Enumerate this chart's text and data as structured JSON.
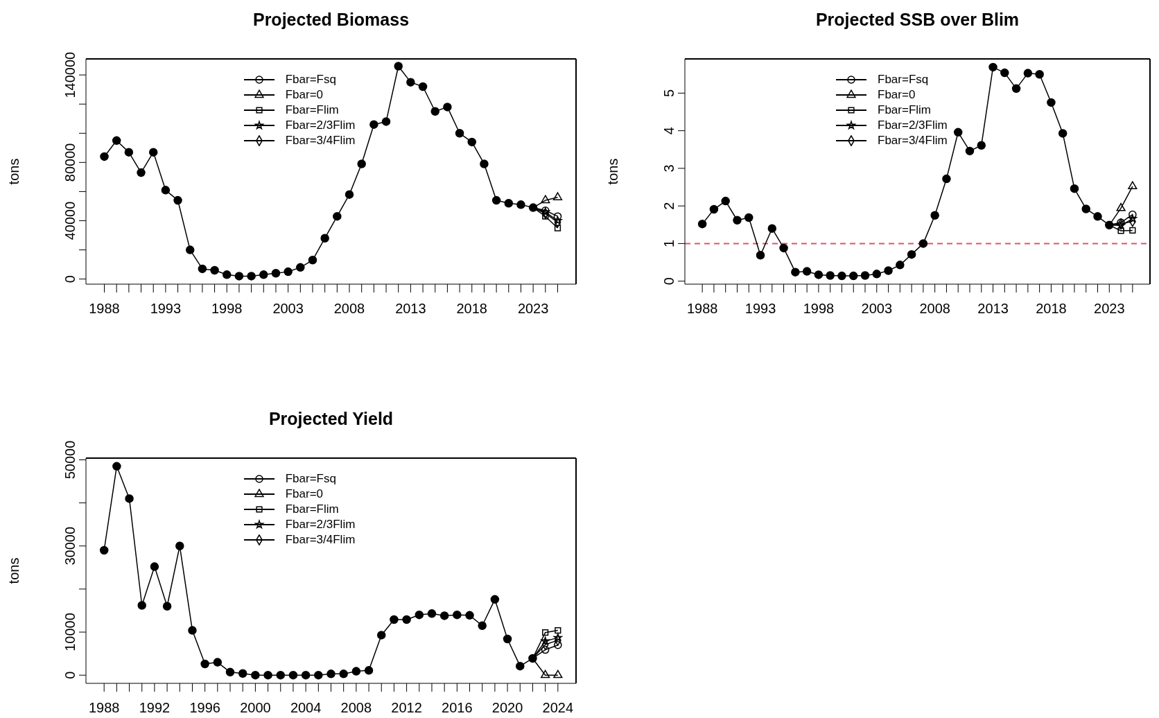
{
  "chart_data": [
    {
      "type": "line",
      "title": "Projected Biomass",
      "ylabel": "tons",
      "legend": "top",
      "xlim": [
        1986.5,
        2026.5
      ],
      "ylim": [
        -3500,
        151000
      ],
      "xticks": [
        1988,
        {
          "value": 1989,
          "label": null
        },
        {
          "value": 1990,
          "label": null
        },
        {
          "value": 1991,
          "label": null
        },
        {
          "value": 1992,
          "label": null
        },
        1993,
        {
          "value": 1994,
          "label": null
        },
        {
          "value": 1995,
          "label": null
        },
        {
          "value": 1996,
          "label": null
        },
        {
          "value": 1997,
          "label": null
        },
        1998,
        {
          "value": 1999,
          "label": null
        },
        {
          "value": 2000,
          "label": null
        },
        {
          "value": 2001,
          "label": null
        },
        {
          "value": 2002,
          "label": null
        },
        2003,
        {
          "value": 2004,
          "label": null
        },
        {
          "value": 2005,
          "label": null
        },
        {
          "value": 2006,
          "label": null
        },
        {
          "value": 2007,
          "label": null
        },
        2008,
        {
          "value": 2009,
          "label": null
        },
        {
          "value": 2010,
          "label": null
        },
        {
          "value": 2011,
          "label": null
        },
        {
          "value": 2012,
          "label": null
        },
        2013,
        {
          "value": 2014,
          "label": null
        },
        {
          "value": 2015,
          "label": null
        },
        {
          "value": 2016,
          "label": null
        },
        {
          "value": 2017,
          "label": null
        },
        2018,
        {
          "value": 2019,
          "label": null
        },
        {
          "value": 2020,
          "label": null
        },
        {
          "value": 2021,
          "label": null
        },
        {
          "value": 2022,
          "label": null
        },
        2023,
        {
          "value": 2024,
          "label": null
        },
        {
          "value": 2025,
          "label": null
        }
      ],
      "yticks": [
        0,
        {
          "value": 20000,
          "label": null
        },
        40000,
        {
          "value": 60000,
          "label": null
        },
        80000,
        {
          "value": 100000,
          "label": null
        },
        {
          "value": 120000,
          "label": null
        },
        140000
      ],
      "series": [
        {
          "color": "#000000",
          "marker": "circle",
          "x": [
            1988,
            1989,
            1990,
            1991,
            1992,
            1993,
            1994,
            1995,
            1996,
            1997,
            1998,
            1999,
            2000,
            2001,
            2002,
            2003,
            2004,
            2005,
            2006,
            2007,
            2008,
            2009,
            2010,
            2011,
            2012,
            2013,
            2014,
            2015,
            2016,
            2017,
            2018,
            2019,
            2020,
            2021,
            2022,
            2023
          ],
          "values": [
            84000,
            95000,
            87000,
            73000,
            87000,
            61000,
            54000,
            20000,
            7000,
            6000,
            3000,
            2000,
            2000,
            3000,
            4000,
            5000,
            8000,
            13000,
            28000,
            43000,
            58000,
            79000,
            106000,
            108000,
            146000,
            135000,
            132000,
            115000,
            118000,
            100000,
            94000,
            79000,
            54000,
            52000,
            51000,
            49000
          ]
        },
        {
          "name": "Fbar=Fsq",
          "color": "#000000",
          "marker": "circle",
          "x": [
            2023,
            2024,
            2025
          ],
          "values": [
            49000,
            47000,
            43000
          ]
        },
        {
          "name": "Fbar=0",
          "color": "#000000",
          "marker": "triangle",
          "x": [
            2023,
            2024,
            2025
          ],
          "values": [
            49000,
            54000,
            56000
          ]
        },
        {
          "name": "Fbar=Flim",
          "color": "#000000",
          "marker": "square",
          "x": [
            2023,
            2024,
            2025
          ],
          "values": [
            49000,
            43000,
            35000
          ]
        },
        {
          "name": "Fbar=2/3Flim",
          "color": "#000000",
          "marker": "star",
          "x": [
            2023,
            2024,
            2025
          ],
          "values": [
            49000,
            46000,
            40000
          ]
        },
        {
          "name": "Fbar=3/4Flim",
          "color": "#000000",
          "marker": "diamond",
          "x": [
            2023,
            2024,
            2025
          ],
          "values": [
            49000,
            45000,
            39000
          ]
        }
      ]
    },
    {
      "type": "line",
      "title": "Projected SSB over Blim",
      "ylabel": "tons",
      "legend": "top",
      "xlim": [
        1986.5,
        2026.5
      ],
      "ylim": [
        -0.08,
        5.91
      ],
      "xticks": [
        1988,
        {
          "value": 1989,
          "label": null
        },
        {
          "value": 1990,
          "label": null
        },
        {
          "value": 1991,
          "label": null
        },
        {
          "value": 1992,
          "label": null
        },
        1993,
        {
          "value": 1994,
          "label": null
        },
        {
          "value": 1995,
          "label": null
        },
        {
          "value": 1996,
          "label": null
        },
        {
          "value": 1997,
          "label": null
        },
        1998,
        {
          "value": 1999,
          "label": null
        },
        {
          "value": 2000,
          "label": null
        },
        {
          "value": 2001,
          "label": null
        },
        {
          "value": 2002,
          "label": null
        },
        2003,
        {
          "value": 2004,
          "label": null
        },
        {
          "value": 2005,
          "label": null
        },
        {
          "value": 2006,
          "label": null
        },
        {
          "value": 2007,
          "label": null
        },
        2008,
        {
          "value": 2009,
          "label": null
        },
        {
          "value": 2010,
          "label": null
        },
        {
          "value": 2011,
          "label": null
        },
        {
          "value": 2012,
          "label": null
        },
        2013,
        {
          "value": 2014,
          "label": null
        },
        {
          "value": 2015,
          "label": null
        },
        {
          "value": 2016,
          "label": null
        },
        {
          "value": 2017,
          "label": null
        },
        2018,
        {
          "value": 2019,
          "label": null
        },
        {
          "value": 2020,
          "label": null
        },
        {
          "value": 2021,
          "label": null
        },
        {
          "value": 2022,
          "label": null
        },
        2023,
        {
          "value": 2024,
          "label": null
        },
        {
          "value": 2025,
          "label": null
        }
      ],
      "yticks": [
        0,
        1,
        2,
        3,
        4,
        5
      ],
      "ref_lines": [
        {
          "axis": "y",
          "value": 1,
          "color": "#df536b",
          "line_style": "dashed"
        }
      ],
      "series": [
        {
          "color": "#000000",
          "marker": "circle",
          "x": [
            1988,
            1989,
            1990,
            1991,
            1992,
            1993,
            1994,
            1995,
            1996,
            1997,
            1998,
            1999,
            2000,
            2001,
            2002,
            2003,
            2004,
            2005,
            2006,
            2007,
            2008,
            2009,
            2010,
            2011,
            2012,
            2013,
            2014,
            2015,
            2016,
            2017,
            2018,
            2019,
            2020,
            2021,
            2022,
            2023
          ],
          "values": [
            1.52,
            1.91,
            2.13,
            1.62,
            1.69,
            0.69,
            1.4,
            0.88,
            0.24,
            0.26,
            0.17,
            0.15,
            0.14,
            0.14,
            0.15,
            0.19,
            0.28,
            0.43,
            0.71,
            1.0,
            1.75,
            2.72,
            3.96,
            3.46,
            3.61,
            5.69,
            5.54,
            5.12,
            5.53,
            5.5,
            4.75,
            3.93,
            2.46,
            1.92,
            1.72,
            1.49
          ]
        },
        {
          "name": "Fbar=Fsq",
          "color": "#000000",
          "marker": "circle",
          "x": [
            2023,
            2024,
            2025
          ],
          "values": [
            1.49,
            1.56,
            1.77
          ]
        },
        {
          "name": "Fbar=0",
          "color": "#000000",
          "marker": "triangle",
          "x": [
            2023,
            2024,
            2025
          ],
          "values": [
            1.49,
            1.94,
            2.52
          ]
        },
        {
          "name": "Fbar=Flim",
          "color": "#000000",
          "marker": "square",
          "x": [
            2023,
            2024,
            2025
          ],
          "values": [
            1.49,
            1.34,
            1.35
          ]
        },
        {
          "name": "Fbar=2/3Flim",
          "color": "#000000",
          "marker": "star",
          "x": [
            2023,
            2024,
            2025
          ],
          "values": [
            1.49,
            1.48,
            1.66
          ]
        },
        {
          "name": "Fbar=3/4Flim",
          "color": "#000000",
          "marker": "diamond",
          "x": [
            2023,
            2024,
            2025
          ],
          "values": [
            1.49,
            1.52,
            1.59
          ]
        }
      ]
    },
    {
      "type": "line",
      "title": "Projected Yield",
      "ylabel": "tons",
      "legend": "top",
      "xlim": [
        1986.56,
        2025.44
      ],
      "ylim": [
        -1900,
        50400
      ],
      "xticks": [
        1988,
        {
          "value": 1989,
          "label": null
        },
        {
          "value": 1990,
          "label": null
        },
        {
          "value": 1991,
          "label": null
        },
        1992,
        {
          "value": 1993,
          "label": null
        },
        {
          "value": 1994,
          "label": null
        },
        {
          "value": 1995,
          "label": null
        },
        1996,
        {
          "value": 1997,
          "label": null
        },
        {
          "value": 1998,
          "label": null
        },
        {
          "value": 1999,
          "label": null
        },
        2000,
        {
          "value": 2001,
          "label": null
        },
        {
          "value": 2002,
          "label": null
        },
        {
          "value": 2003,
          "label": null
        },
        2004,
        {
          "value": 2005,
          "label": null
        },
        {
          "value": 2006,
          "label": null
        },
        {
          "value": 2007,
          "label": null
        },
        2008,
        {
          "value": 2009,
          "label": null
        },
        {
          "value": 2010,
          "label": null
        },
        {
          "value": 2011,
          "label": null
        },
        2012,
        {
          "value": 2013,
          "label": null
        },
        {
          "value": 2014,
          "label": null
        },
        {
          "value": 2015,
          "label": null
        },
        2016,
        {
          "value": 2017,
          "label": null
        },
        {
          "value": 2018,
          "label": null
        },
        {
          "value": 2019,
          "label": null
        },
        2020,
        {
          "value": 2021,
          "label": null
        },
        {
          "value": 2022,
          "label": null
        },
        {
          "value": 2023,
          "label": null
        },
        2024
      ],
      "yticks": [
        0,
        10000,
        {
          "value": 20000,
          "label": null
        },
        30000,
        {
          "value": 40000,
          "label": null
        },
        50000
      ],
      "series": [
        {
          "color": "#000000",
          "marker": "circle",
          "x": [
            1988,
            1989,
            1990,
            1991,
            1992,
            1993,
            1994,
            1995,
            1996,
            1997,
            1998,
            1999,
            2000,
            2001,
            2002,
            2003,
            2004,
            2005,
            2006,
            2007,
            2008,
            2009,
            2010,
            2011,
            2012,
            2013,
            2014,
            2015,
            2016,
            2017,
            2018,
            2019,
            2020,
            2021,
            2022
          ],
          "values": [
            29000,
            48500,
            41000,
            16200,
            25200,
            16000,
            30000,
            10400,
            2600,
            3000,
            700,
            400,
            0,
            0,
            0,
            0,
            0,
            0,
            300,
            300,
            900,
            1100,
            9300,
            12900,
            12900,
            14000,
            14300,
            13800,
            14000,
            13900,
            11500,
            17600,
            8400,
            2100,
            3900
          ]
        },
        {
          "name": "Fbar=Fsq",
          "color": "#000000",
          "marker": "circle",
          "x": [
            2022,
            2023,
            2024
          ],
          "values": [
            3900,
            5900,
            7000
          ]
        },
        {
          "name": "Fbar=0",
          "color": "#000000",
          "marker": "triangle",
          "x": [
            2022,
            2023,
            2024
          ],
          "values": [
            3900,
            0,
            0
          ]
        },
        {
          "name": "Fbar=Flim",
          "color": "#000000",
          "marker": "square",
          "x": [
            2022,
            2023,
            2024
          ],
          "values": [
            3900,
            9900,
            10400
          ]
        },
        {
          "name": "Fbar=2/3Flim",
          "color": "#000000",
          "marker": "star",
          "x": [
            2022,
            2023,
            2024
          ],
          "values": [
            3900,
            7900,
            8700
          ]
        },
        {
          "name": "Fbar=3/4Flim",
          "color": "#000000",
          "marker": "diamond",
          "x": [
            2022,
            2023,
            2024
          ],
          "values": [
            3900,
            7100,
            8100
          ]
        }
      ]
    }
  ]
}
